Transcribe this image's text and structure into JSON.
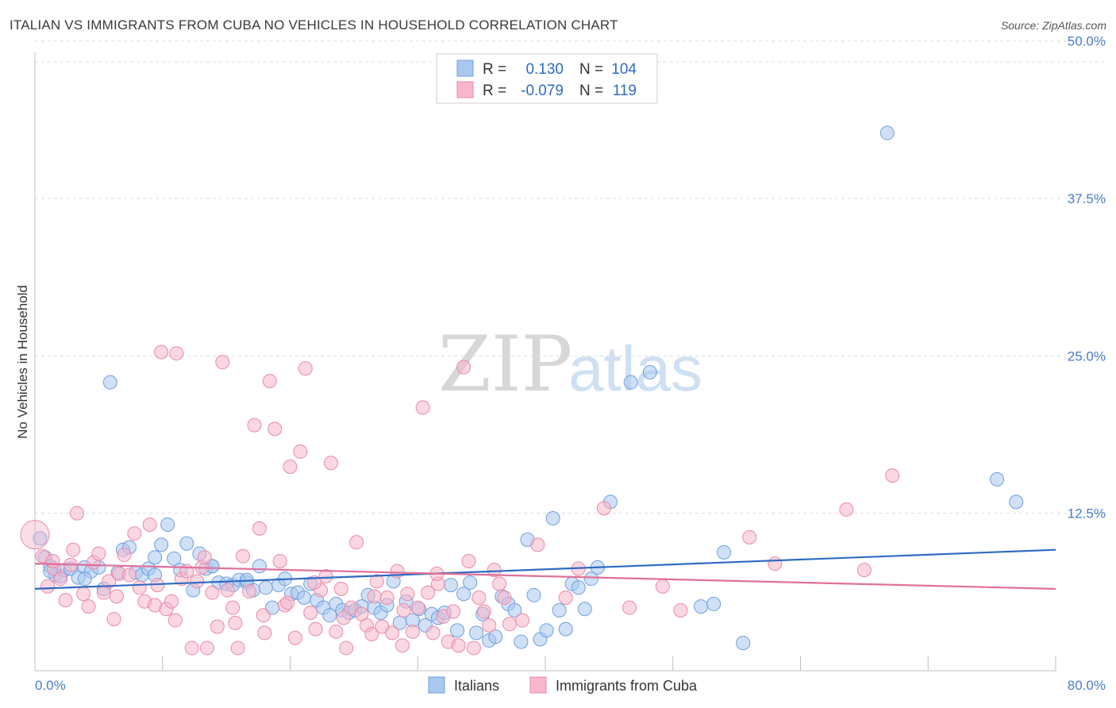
{
  "title": "ITALIAN VS IMMIGRANTS FROM CUBA NO VEHICLES IN HOUSEHOLD CORRELATION CHART",
  "source": "Source: ZipAtlas.com",
  "watermark": {
    "zip": "ZIP",
    "atlas": "atlas"
  },
  "legend": {
    "rows": [
      {
        "r_label": "R =",
        "r_value": "0.130",
        "n_label": "N =",
        "n_value": "104",
        "color": "#a9c8f0"
      },
      {
        "r_label": "R =",
        "r_value": "-0.079",
        "n_label": "N =",
        "n_value": "119",
        "color": "#f7b6cb"
      }
    ]
  },
  "chart_data": {
    "type": "scatter",
    "title": "ITALIAN VS IMMIGRANTS FROM CUBA NO VEHICLES IN HOUSEHOLD CORRELATION CHART",
    "ylabel": "No Vehicles in Household",
    "xlabel": "",
    "xlim": [
      0,
      80
    ],
    "ylim": [
      0,
      52
    ],
    "x_tick_labels": {
      "left": "0.0%",
      "right": "80.0%"
    },
    "y_ticks": [
      {
        "value": 12.5,
        "label": "12.5%"
      },
      {
        "value": 25,
        "label": "25.0%"
      },
      {
        "value": 37.5,
        "label": "37.5%"
      },
      {
        "value": 50,
        "label": "50.0%"
      }
    ],
    "grid": true,
    "series": [
      {
        "name": "Italians",
        "color": "#a9c8f0",
        "stroke": "#6f9fde",
        "trend": {
          "x": [
            0,
            80
          ],
          "y": [
            6.5,
            9.6
          ],
          "color": "#2f6bc4"
        },
        "points": [
          [
            0.4,
            10.5
          ],
          [
            0.8,
            9.0
          ],
          [
            1.2,
            8.3
          ],
          [
            1.6,
            7.6
          ],
          [
            2.0,
            7.5
          ],
          [
            2.3,
            8.0
          ],
          [
            2.8,
            8.1
          ],
          [
            3.4,
            7.4
          ],
          [
            3.9,
            8.2
          ],
          [
            4.4,
            7.9
          ],
          [
            5.0,
            8.2
          ],
          [
            5.4,
            6.5
          ],
          [
            5.9,
            22.9
          ],
          [
            6.5,
            7.8
          ],
          [
            6.9,
            9.6
          ],
          [
            7.4,
            9.8
          ],
          [
            7.9,
            7.8
          ],
          [
            8.4,
            7.6
          ],
          [
            8.9,
            8.1
          ],
          [
            9.4,
            9.0
          ],
          [
            9.9,
            10.0
          ],
          [
            10.4,
            11.6
          ],
          [
            10.9,
            8.9
          ],
          [
            11.4,
            8.0
          ],
          [
            11.9,
            10.1
          ],
          [
            12.4,
            6.4
          ],
          [
            12.9,
            9.3
          ],
          [
            13.4,
            8.1
          ],
          [
            13.9,
            8.3
          ],
          [
            14.4,
            7.0
          ],
          [
            15.0,
            6.9
          ],
          [
            15.5,
            6.8
          ],
          [
            16.0,
            7.2
          ],
          [
            16.6,
            7.0
          ],
          [
            17.1,
            6.4
          ],
          [
            17.6,
            8.3
          ],
          [
            18.1,
            6.6
          ],
          [
            18.6,
            5.0
          ],
          [
            19.1,
            6.8
          ],
          [
            19.6,
            7.3
          ],
          [
            20.1,
            6.1
          ],
          [
            20.6,
            6.2
          ],
          [
            21.1,
            5.8
          ],
          [
            21.6,
            6.9
          ],
          [
            22.1,
            5.6
          ],
          [
            22.6,
            5.0
          ],
          [
            23.1,
            4.4
          ],
          [
            23.6,
            5.3
          ],
          [
            24.1,
            4.8
          ],
          [
            24.6,
            4.6
          ],
          [
            25.1,
            4.8
          ],
          [
            25.6,
            5.1
          ],
          [
            26.1,
            6.0
          ],
          [
            26.6,
            5.0
          ],
          [
            27.1,
            4.6
          ],
          [
            27.6,
            5.2
          ],
          [
            28.1,
            7.1
          ],
          [
            28.6,
            3.8
          ],
          [
            29.1,
            5.5
          ],
          [
            29.6,
            4.0
          ],
          [
            30.1,
            4.9
          ],
          [
            30.6,
            3.6
          ],
          [
            31.1,
            4.5
          ],
          [
            31.6,
            4.2
          ],
          [
            32.1,
            4.6
          ],
          [
            32.6,
            6.8
          ],
          [
            33.1,
            3.2
          ],
          [
            33.6,
            6.1
          ],
          [
            34.1,
            7.0
          ],
          [
            34.6,
            3.0
          ],
          [
            35.1,
            4.5
          ],
          [
            35.6,
            2.4
          ],
          [
            36.1,
            2.7
          ],
          [
            36.6,
            5.9
          ],
          [
            37.1,
            5.3
          ],
          [
            37.6,
            4.8
          ],
          [
            38.1,
            2.3
          ],
          [
            38.6,
            10.4
          ],
          [
            39.1,
            6.0
          ],
          [
            39.6,
            2.5
          ],
          [
            40.1,
            3.2
          ],
          [
            40.6,
            12.1
          ],
          [
            41.1,
            4.8
          ],
          [
            41.6,
            3.3
          ],
          [
            42.1,
            6.9
          ],
          [
            42.6,
            6.6
          ],
          [
            43.1,
            4.9
          ],
          [
            43.6,
            7.3
          ],
          [
            44.1,
            8.2
          ],
          [
            45.1,
            13.4
          ],
          [
            46.7,
            22.9
          ],
          [
            48.2,
            23.7
          ],
          [
            54.0,
            9.4
          ],
          [
            55.5,
            2.2
          ],
          [
            52.2,
            5.1
          ],
          [
            53.2,
            5.3
          ],
          [
            66.8,
            42.7
          ],
          [
            75.4,
            15.2
          ],
          [
            76.9,
            13.4
          ],
          [
            16.6,
            7.2
          ],
          [
            13.9,
            8.3
          ],
          [
            9.4,
            7.6
          ],
          [
            3.9,
            7.3
          ],
          [
            1.2,
            7.9
          ]
        ]
      },
      {
        "name": "Immigrants from Cuba",
        "color": "#f7b6cb",
        "stroke": "#e98aa8",
        "trend": {
          "x": [
            0,
            80
          ],
          "y": [
            8.5,
            6.5
          ],
          "color": "#e0709a"
        },
        "points": [
          [
            0.0,
            10.8
          ],
          [
            0.6,
            9.1
          ],
          [
            1.0,
            6.7
          ],
          [
            1.5,
            8.1
          ],
          [
            2.0,
            7.3
          ],
          [
            2.4,
            5.6
          ],
          [
            2.8,
            8.4
          ],
          [
            3.3,
            12.5
          ],
          [
            3.8,
            6.1
          ],
          [
            4.2,
            5.1
          ],
          [
            4.6,
            8.6
          ],
          [
            5.0,
            9.3
          ],
          [
            5.4,
            6.2
          ],
          [
            5.8,
            7.1
          ],
          [
            6.2,
            4.1
          ],
          [
            6.6,
            7.7
          ],
          [
            7.0,
            9.2
          ],
          [
            7.4,
            7.6
          ],
          [
            7.8,
            10.9
          ],
          [
            8.2,
            6.6
          ],
          [
            8.6,
            5.5
          ],
          [
            9.0,
            11.6
          ],
          [
            9.4,
            5.2
          ],
          [
            9.9,
            25.3
          ],
          [
            10.3,
            4.9
          ],
          [
            10.7,
            5.5
          ],
          [
            11.1,
            25.2
          ],
          [
            11.5,
            7.3
          ],
          [
            11.9,
            7.9
          ],
          [
            12.3,
            1.8
          ],
          [
            12.7,
            7.1
          ],
          [
            13.1,
            8.2
          ],
          [
            13.5,
            1.8
          ],
          [
            13.9,
            6.2
          ],
          [
            14.3,
            3.5
          ],
          [
            14.7,
            24.5
          ],
          [
            15.1,
            6.4
          ],
          [
            15.5,
            5.0
          ],
          [
            15.9,
            1.8
          ],
          [
            16.3,
            9.1
          ],
          [
            16.8,
            6.3
          ],
          [
            17.2,
            19.5
          ],
          [
            17.6,
            11.3
          ],
          [
            18.0,
            3.0
          ],
          [
            18.4,
            23.0
          ],
          [
            18.8,
            19.2
          ],
          [
            19.2,
            8.7
          ],
          [
            19.6,
            5.2
          ],
          [
            20.0,
            16.2
          ],
          [
            20.4,
            2.6
          ],
          [
            20.8,
            17.4
          ],
          [
            21.2,
            24.0
          ],
          [
            21.6,
            4.6
          ],
          [
            22.0,
            3.3
          ],
          [
            22.4,
            6.4
          ],
          [
            22.8,
            7.5
          ],
          [
            23.2,
            16.5
          ],
          [
            23.6,
            3.1
          ],
          [
            24.0,
            6.5
          ],
          [
            24.4,
            1.8
          ],
          [
            24.8,
            5.0
          ],
          [
            25.2,
            10.2
          ],
          [
            25.6,
            4.5
          ],
          [
            26.0,
            3.6
          ],
          [
            26.4,
            2.9
          ],
          [
            26.8,
            7.1
          ],
          [
            27.2,
            3.5
          ],
          [
            27.6,
            5.8
          ],
          [
            28.0,
            3.0
          ],
          [
            28.4,
            7.9
          ],
          [
            28.8,
            2.0
          ],
          [
            29.2,
            6.1
          ],
          [
            29.6,
            3.1
          ],
          [
            30.0,
            5.0
          ],
          [
            30.4,
            20.9
          ],
          [
            30.8,
            6.2
          ],
          [
            31.2,
            3.0
          ],
          [
            31.6,
            6.9
          ],
          [
            32.0,
            4.3
          ],
          [
            32.4,
            2.3
          ],
          [
            32.8,
            4.7
          ],
          [
            33.2,
            2.0
          ],
          [
            33.6,
            24.1
          ],
          [
            34.0,
            8.7
          ],
          [
            34.4,
            1.8
          ],
          [
            34.8,
            5.8
          ],
          [
            35.2,
            4.7
          ],
          [
            35.6,
            3.6
          ],
          [
            36.0,
            8.0
          ],
          [
            36.4,
            6.9
          ],
          [
            36.8,
            5.8
          ],
          [
            37.2,
            3.7
          ],
          [
            38.2,
            4.0
          ],
          [
            39.4,
            10.0
          ],
          [
            41.6,
            5.8
          ],
          [
            42.6,
            8.1
          ],
          [
            44.6,
            12.9
          ],
          [
            46.6,
            5.0
          ],
          [
            49.2,
            6.7
          ],
          [
            50.6,
            4.8
          ],
          [
            56.0,
            10.6
          ],
          [
            58.0,
            8.5
          ],
          [
            63.6,
            12.8
          ],
          [
            65.0,
            8.0
          ],
          [
            67.2,
            15.5
          ],
          [
            1.4,
            8.7
          ],
          [
            3.0,
            9.6
          ],
          [
            6.4,
            5.9
          ],
          [
            9.6,
            6.8
          ],
          [
            11.0,
            4.0
          ],
          [
            13.3,
            9.0
          ],
          [
            15.7,
            3.8
          ],
          [
            17.9,
            4.4
          ],
          [
            19.8,
            5.4
          ],
          [
            21.9,
            7.0
          ],
          [
            24.2,
            4.2
          ],
          [
            26.6,
            5.9
          ],
          [
            28.9,
            4.8
          ],
          [
            31.5,
            7.7
          ]
        ]
      }
    ]
  },
  "bottom_legend": [
    {
      "label": "Italians",
      "color": "#a9c8f0"
    },
    {
      "label": "Immigrants from Cuba",
      "color": "#f7b6cb"
    }
  ]
}
